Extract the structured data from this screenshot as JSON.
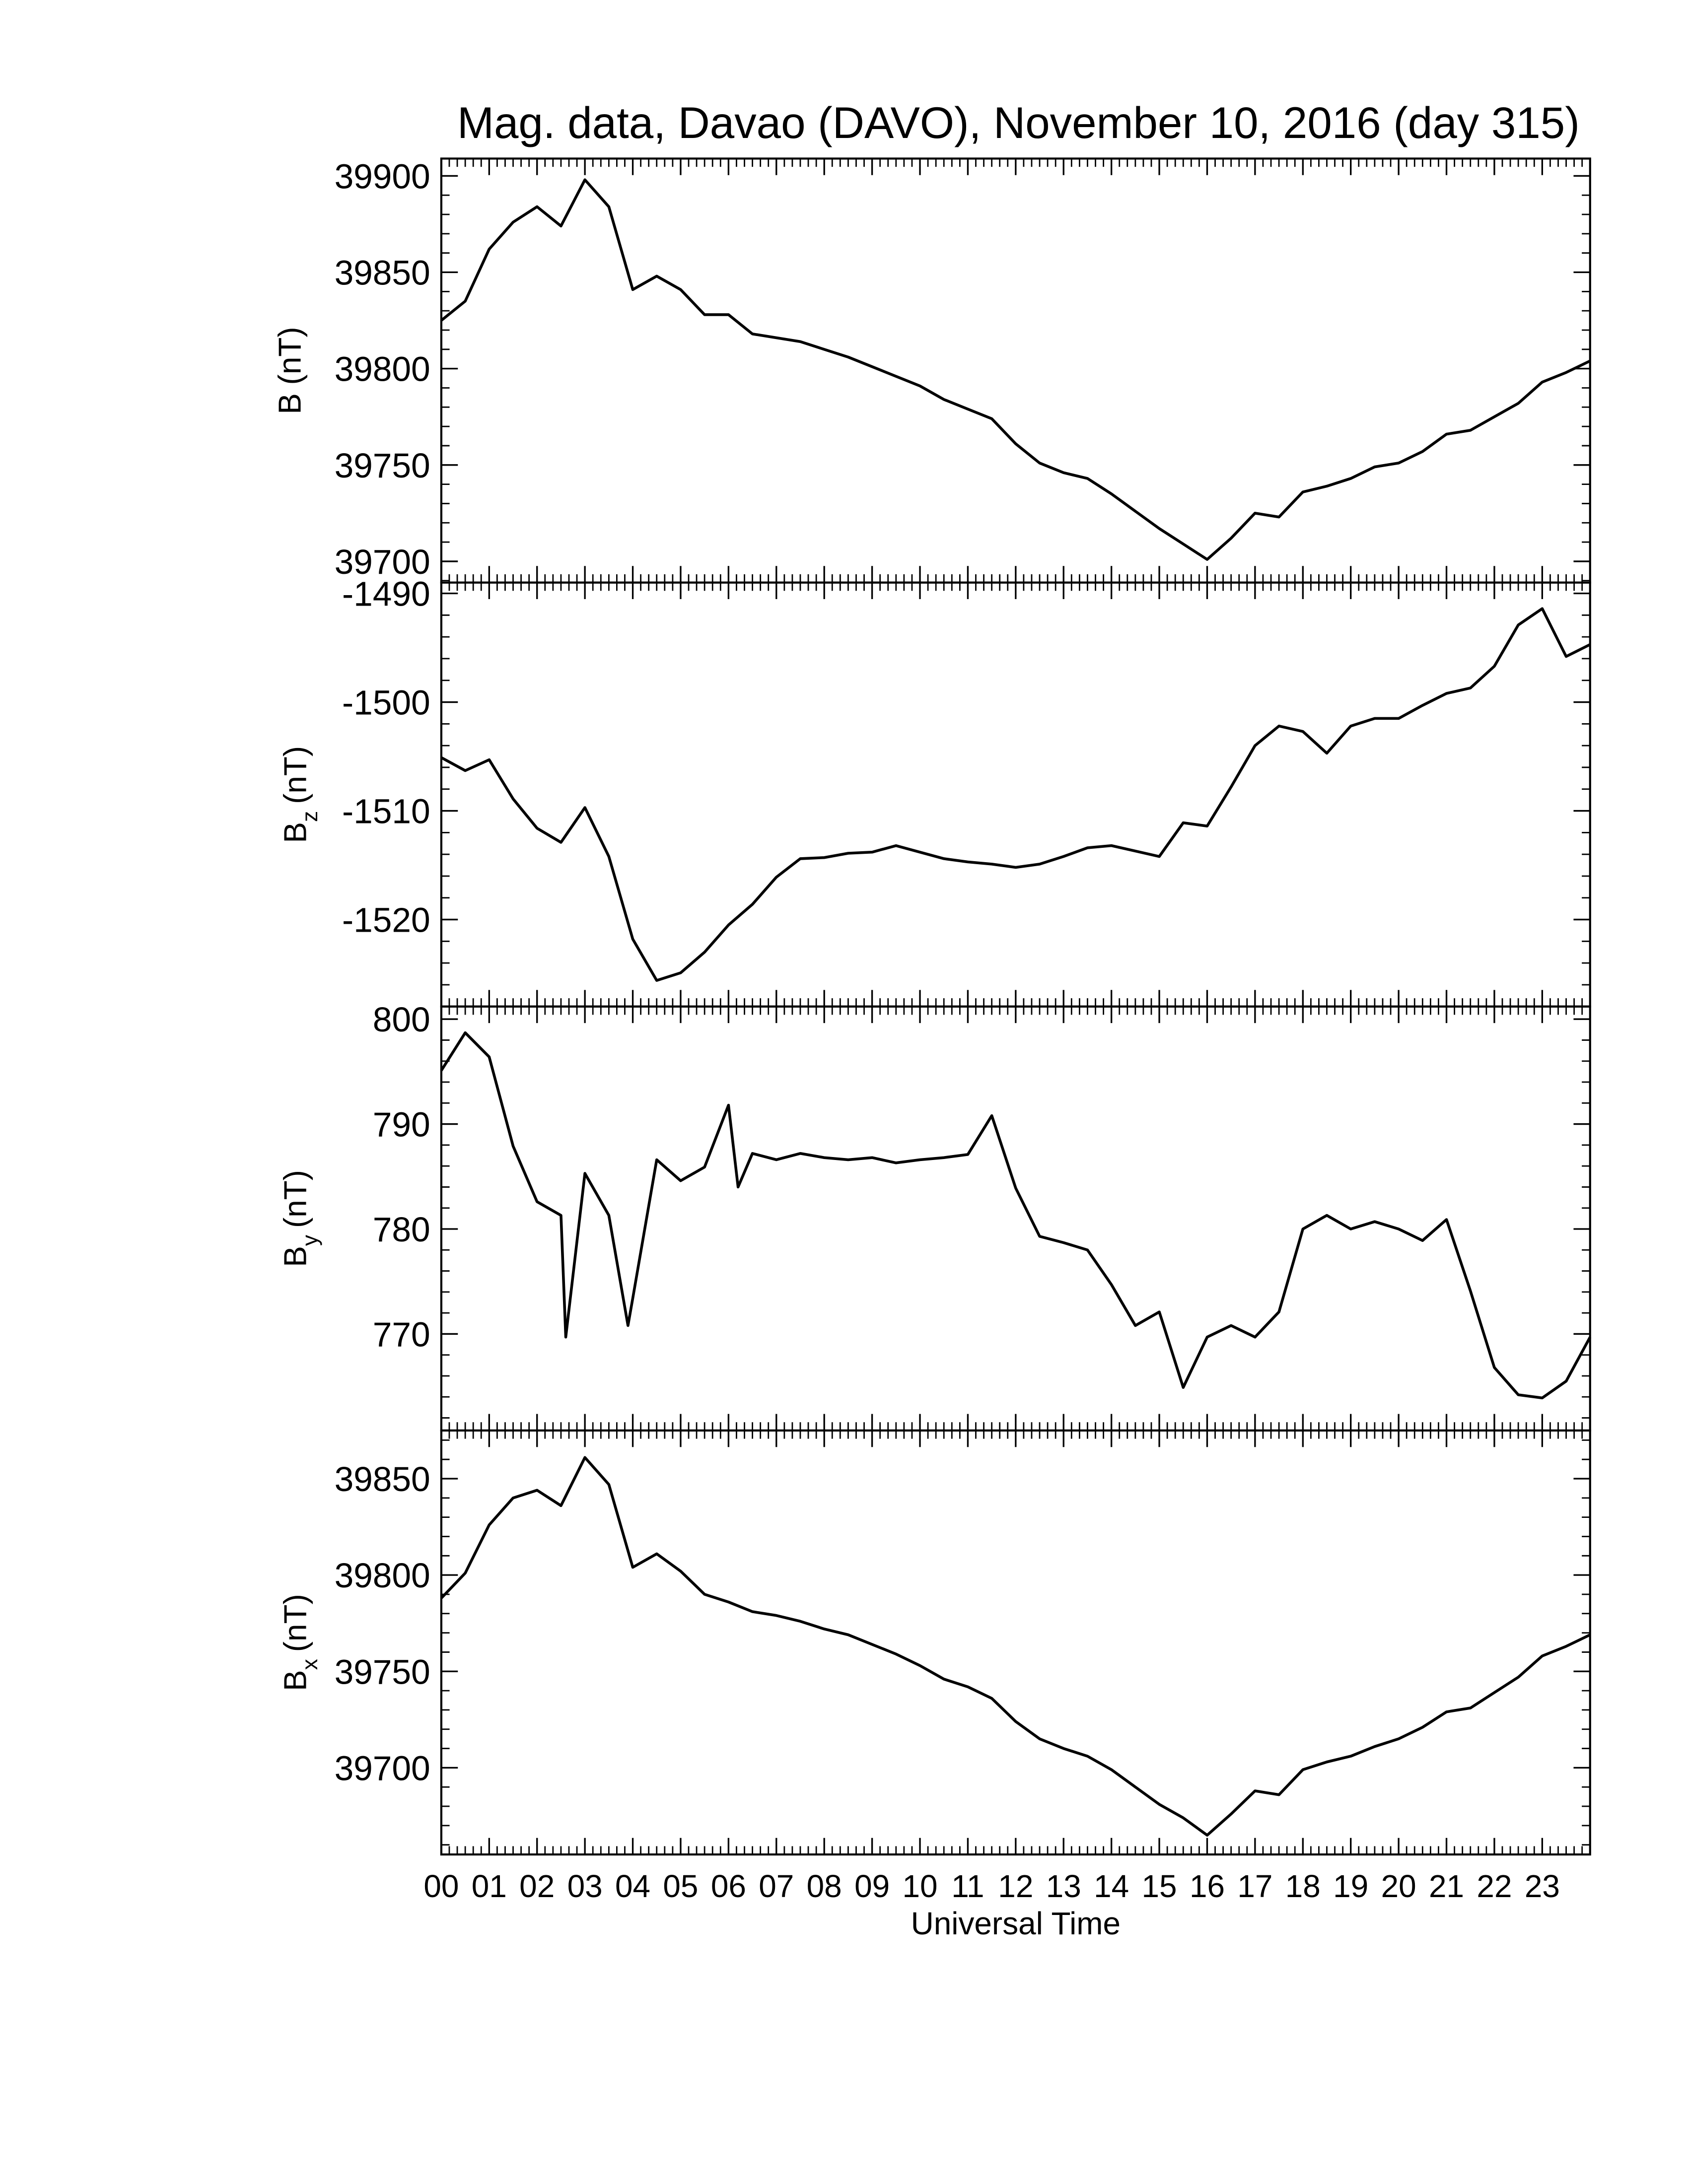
{
  "chart_data": [
    {
      "type": "line",
      "title": "Mag. data, Davao (DAVO), November 10, 2016 (day 315)",
      "ylabel": "B",
      "ylabel_unit": "(nT)",
      "color": "#000000",
      "xlim": [
        0,
        24
      ],
      "ylim": [
        39689,
        39909
      ],
      "yticks": [
        39700,
        39750,
        39800,
        39850,
        39900
      ],
      "x": [
        0,
        0.5,
        1,
        1.5,
        2,
        2.5,
        3,
        3.5,
        4,
        4.5,
        5,
        5.5,
        6,
        6.5,
        7,
        7.5,
        8,
        8.5,
        9,
        9.5,
        10,
        10.5,
        11,
        11.5,
        12,
        12.5,
        13,
        13.5,
        14,
        14.5,
        15,
        15.5,
        16,
        16.5,
        17,
        17.5,
        18,
        18.5,
        19,
        19.5,
        20,
        20.5,
        21,
        21.5,
        22,
        22.5,
        23,
        23.5,
        24
      ],
      "values": [
        39825,
        39835,
        39862,
        39876,
        39884,
        39874,
        39898,
        39884,
        39841,
        39848,
        39841,
        39828,
        39828,
        39818,
        39816,
        39814,
        39810,
        39806,
        39801,
        39796,
        39791,
        39784,
        39779,
        39774,
        39761,
        39751,
        39746,
        39743,
        39735,
        39726,
        39717,
        39709,
        39701,
        39712,
        39725,
        39723,
        39736,
        39739,
        39743,
        39749,
        39751,
        39757,
        39766,
        39768,
        39775,
        39782,
        39793,
        39798,
        39804
      ]
    },
    {
      "type": "line",
      "ylabel": "B",
      "ylabel_sub": "z",
      "ylabel_unit": "(nT)",
      "color": "#000000",
      "xlim": [
        0,
        24
      ],
      "ylim": [
        -1528,
        -1489
      ],
      "yticks": [
        -1520,
        -1510,
        -1500,
        -1490
      ],
      "x": [
        0,
        0.5,
        1,
        1.5,
        2,
        2.5,
        3,
        3.5,
        4,
        4.5,
        5,
        5.5,
        6,
        6.5,
        7,
        7.5,
        8,
        8.5,
        9,
        9.5,
        10,
        10.5,
        11,
        11.5,
        12,
        12.5,
        13,
        13.5,
        14,
        14.5,
        15,
        15.5,
        16,
        16.5,
        17,
        17.5,
        18,
        18.5,
        19,
        19.5,
        20,
        20.5,
        21,
        21.5,
        22,
        22.5,
        23,
        23.5,
        24
      ],
      "values": [
        -1505.1,
        -1506.3,
        -1505.3,
        -1508.9,
        -1511.6,
        -1512.9,
        -1509.7,
        -1514.2,
        -1521.8,
        -1525.6,
        -1524.9,
        -1523,
        -1520.5,
        -1518.6,
        -1516.1,
        -1514.4,
        -1514.3,
        -1513.9,
        -1513.8,
        -1513.2,
        -1513.8,
        -1514.4,
        -1514.7,
        -1514.9,
        -1515.2,
        -1514.9,
        -1514.2,
        -1513.4,
        -1513.2,
        -1513.7,
        -1514.2,
        -1511.1,
        -1511.4,
        -1507.8,
        -1504,
        -1502.2,
        -1502.7,
        -1504.7,
        -1502.2,
        -1501.5,
        -1501.5,
        -1500.3,
        -1499.2,
        -1498.7,
        -1496.7,
        -1492.9,
        -1491.4,
        -1495.8,
        -1494.7
      ]
    },
    {
      "type": "line",
      "ylabel": "B",
      "ylabel_sub": "y",
      "ylabel_unit": "(nT)",
      "color": "#000000",
      "xlim": [
        0,
        24
      ],
      "ylim": [
        760.8,
        801.2
      ],
      "yticks": [
        770,
        780,
        790,
        800
      ],
      "x": [
        0,
        0.5,
        1,
        1.5,
        2,
        2.5,
        2.6,
        3,
        3.5,
        3.9,
        4,
        4.5,
        5,
        5.5,
        6,
        6.2,
        6.5,
        7,
        7.5,
        8,
        8.5,
        9,
        9.5,
        10,
        10.5,
        11,
        11.5,
        12,
        12.5,
        13,
        13.5,
        14,
        14.5,
        15,
        15.5,
        16,
        16.5,
        17,
        17.5,
        18,
        18.5,
        19,
        19.5,
        20,
        20.5,
        21,
        21.5,
        22,
        22.5,
        23,
        23.5,
        24
      ],
      "values": [
        795.1,
        798.7,
        796.4,
        787.9,
        782.6,
        781.3,
        769.7,
        785.3,
        781.3,
        770.8,
        773.4,
        786.6,
        784.6,
        785.9,
        791.8,
        784,
        787.2,
        786.6,
        787.2,
        786.8,
        786.6,
        786.8,
        786.3,
        786.6,
        786.8,
        787.1,
        790.8,
        783.9,
        779.3,
        778.7,
        778,
        774.7,
        770.8,
        772.1,
        764.9,
        769.7,
        770.8,
        769.7,
        772.1,
        780,
        781.3,
        780,
        780.7,
        780,
        778.9,
        780.9,
        774.1,
        766.8,
        764.2,
        763.9,
        765.5,
        769.7
      ]
    },
    {
      "type": "line",
      "ylabel": "B",
      "ylabel_sub": "x",
      "ylabel_unit": "(nT)",
      "xlabel": "Universal Time",
      "color": "#000000",
      "xlim": [
        0,
        24
      ],
      "ylim": [
        39655,
        39875
      ],
      "yticks": [
        39700,
        39750,
        39800,
        39850
      ],
      "xticks": [
        {
          "value": 0,
          "label": "00"
        },
        {
          "value": 1,
          "label": "01"
        },
        {
          "value": 2,
          "label": "02"
        },
        {
          "value": 3,
          "label": "03"
        },
        {
          "value": 4,
          "label": "04"
        },
        {
          "value": 5,
          "label": "05"
        },
        {
          "value": 6,
          "label": "06"
        },
        {
          "value": 7,
          "label": "07"
        },
        {
          "value": 8,
          "label": "08"
        },
        {
          "value": 9,
          "label": "09"
        },
        {
          "value": 10,
          "label": "10"
        },
        {
          "value": 11,
          "label": "11"
        },
        {
          "value": 12,
          "label": "12"
        },
        {
          "value": 13,
          "label": "13"
        },
        {
          "value": 14,
          "label": "14"
        },
        {
          "value": 15,
          "label": "15"
        },
        {
          "value": 16,
          "label": "16"
        },
        {
          "value": 17,
          "label": "17"
        },
        {
          "value": 18,
          "label": "18"
        },
        {
          "value": 19,
          "label": "19"
        },
        {
          "value": 20,
          "label": "20"
        },
        {
          "value": 21,
          "label": "21"
        },
        {
          "value": 22,
          "label": "22"
        },
        {
          "value": 23,
          "label": "23"
        }
      ],
      "x": [
        0,
        0.5,
        1,
        1.5,
        2,
        2.5,
        3,
        3.5,
        4,
        4.5,
        5,
        5.5,
        6,
        6.5,
        7,
        7.5,
        8,
        8.5,
        9,
        9.5,
        10,
        10.5,
        11,
        11.5,
        12,
        12.5,
        13,
        13.5,
        14,
        14.5,
        15,
        15.5,
        16,
        16.5,
        17,
        17.5,
        18,
        18.5,
        19,
        19.5,
        20,
        20.5,
        21,
        21.5,
        22,
        22.5,
        23,
        23.5,
        24
      ],
      "values": [
        39788,
        39801,
        39826,
        39840,
        39844,
        39836,
        39861,
        39847,
        39804,
        39811,
        39802,
        39790,
        39786,
        39781,
        39779,
        39776,
        39772,
        39769,
        39764,
        39759,
        39753,
        39746,
        39742,
        39736,
        39724,
        39715,
        39710,
        39706,
        39699,
        39690,
        39681,
        39674,
        39665,
        39676,
        39688,
        39686,
        39699,
        39703,
        39706,
        39711,
        39715,
        39721,
        39729,
        39731,
        39739,
        39747,
        39758,
        39763,
        39769
      ]
    }
  ]
}
